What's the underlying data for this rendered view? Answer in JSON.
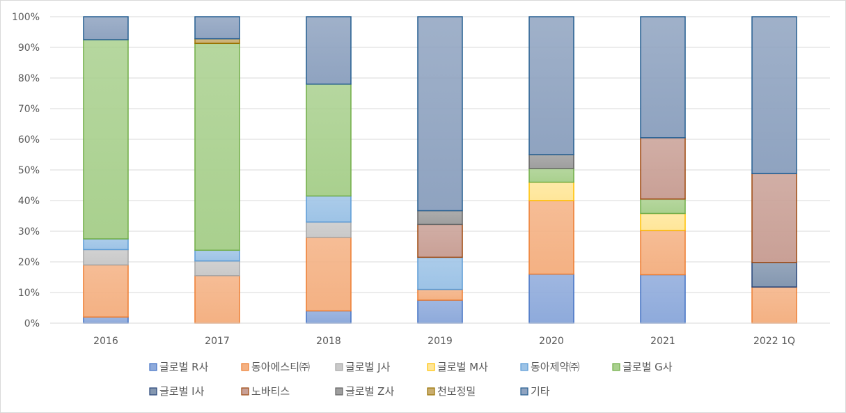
{
  "chart_data": {
    "type": "bar",
    "stacked": true,
    "percent": true,
    "categories": [
      "2016",
      "2017",
      "2018",
      "2019",
      "2020",
      "2021",
      "2022 1Q"
    ],
    "ylim": [
      0,
      100
    ],
    "yticks": [
      "0%",
      "10%",
      "20%",
      "30%",
      "40%",
      "50%",
      "60%",
      "70%",
      "80%",
      "90%",
      "100%"
    ],
    "grid": true,
    "legend_position": "bottom",
    "series": [
      {
        "name": "글로벌 R사",
        "color": "#8eaadb",
        "stroke": "#4472c4",
        "values": [
          2,
          0,
          4,
          7.5,
          16,
          15.8,
          0
        ]
      },
      {
        "name": "동아에스티㈜",
        "color": "#f4b183",
        "stroke": "#ed7d31",
        "values": [
          17,
          15.5,
          24,
          3.5,
          24,
          14.5,
          11.8
        ]
      },
      {
        "name": "글로벌 J사",
        "color": "#c9c9c9",
        "stroke": "#a5a5a5",
        "values": [
          5,
          4.8,
          5,
          0,
          0,
          0,
          0
        ]
      },
      {
        "name": "글로벌 M사",
        "color": "#ffe699",
        "stroke": "#ffc000",
        "values": [
          0,
          0,
          0,
          0,
          6,
          5.5,
          0
        ]
      },
      {
        "name": "동아제약㈜",
        "color": "#9dc3e6",
        "stroke": "#5b9bd5",
        "values": [
          3.5,
          3.5,
          8.5,
          10.5,
          0,
          0,
          0
        ]
      },
      {
        "name": "글로벌 G사",
        "color": "#a9d08e",
        "stroke": "#70ad47",
        "values": [
          65,
          67.5,
          36.5,
          0,
          4.5,
          4.7,
          0
        ]
      },
      {
        "name": "글로벌 I사",
        "color": "#8497b0",
        "stroke": "#264478",
        "values": [
          0,
          0,
          0,
          0,
          0,
          0,
          8
        ]
      },
      {
        "name": "노바티스",
        "color": "#c9a096",
        "stroke": "#9e480e",
        "values": [
          0,
          0,
          0,
          10.7,
          0,
          20,
          29
        ]
      },
      {
        "name": "글로벌 Z사",
        "color": "#9e9e9e",
        "stroke": "#636363",
        "values": [
          0,
          0,
          0,
          4.5,
          4.5,
          0,
          0
        ]
      },
      {
        "name": "천보정밀",
        "color": "#c9ad6e",
        "stroke": "#997300",
        "values": [
          0,
          1.5,
          0,
          0,
          0,
          0,
          0
        ]
      },
      {
        "name": "기타",
        "color": "#8fa3c0",
        "stroke": "#255e91",
        "values": [
          7.5,
          7.2,
          22,
          63.3,
          45,
          39.5,
          51.2
        ]
      }
    ]
  }
}
